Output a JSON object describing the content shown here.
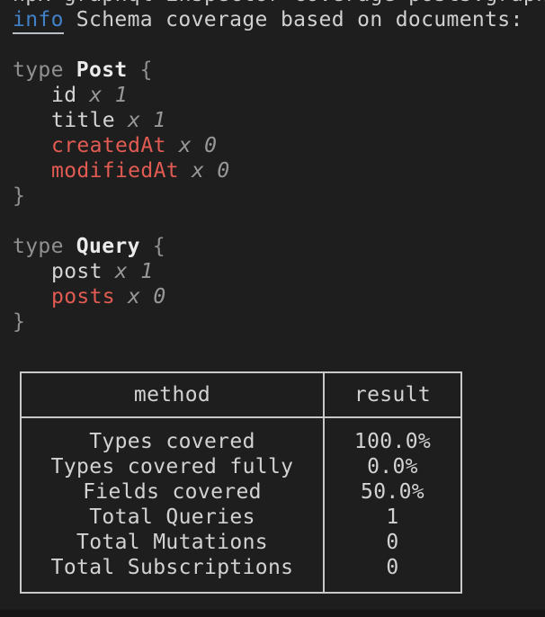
{
  "terminal": {
    "clipped_line": "npx graphql-inspector coverage posts.graphql schema.graphql",
    "info": {
      "label": "info",
      "message": "Schema coverage based on documents:"
    },
    "types": [
      {
        "keyword": "type",
        "name": "Post",
        "brace_open": "{",
        "brace_close": "}",
        "fields": [
          {
            "name": "id",
            "usage": "x 1"
          },
          {
            "name": "title",
            "usage": "x 1"
          },
          {
            "name": "createdAt",
            "usage": "x 0"
          },
          {
            "name": "modifiedAt",
            "usage": "x 0"
          }
        ]
      },
      {
        "keyword": "type",
        "name": "Query",
        "brace_open": "{",
        "brace_close": "}",
        "fields": [
          {
            "name": "post",
            "usage": "x 1"
          },
          {
            "name": "posts",
            "usage": "x 0"
          }
        ]
      }
    ],
    "coverage_table": {
      "headers": [
        "method",
        "result"
      ],
      "rows": [
        [
          "Types covered",
          "100.0%"
        ],
        [
          "Types covered fully",
          "0.0%"
        ],
        [
          "Fields covered",
          "50.0%"
        ],
        [
          "Total Queries",
          "1"
        ],
        [
          "Total Mutations",
          "0"
        ],
        [
          "Total Subscriptions",
          "0"
        ]
      ]
    },
    "colors": {
      "background": "#1e1e1e",
      "foreground": "#d0d0d0",
      "dim": "#909090",
      "bold_name": "#ebebeb",
      "uncovered_red": "#e15b52",
      "info_blue": "#4181c8",
      "table_border": "#c8c8c8"
    }
  }
}
